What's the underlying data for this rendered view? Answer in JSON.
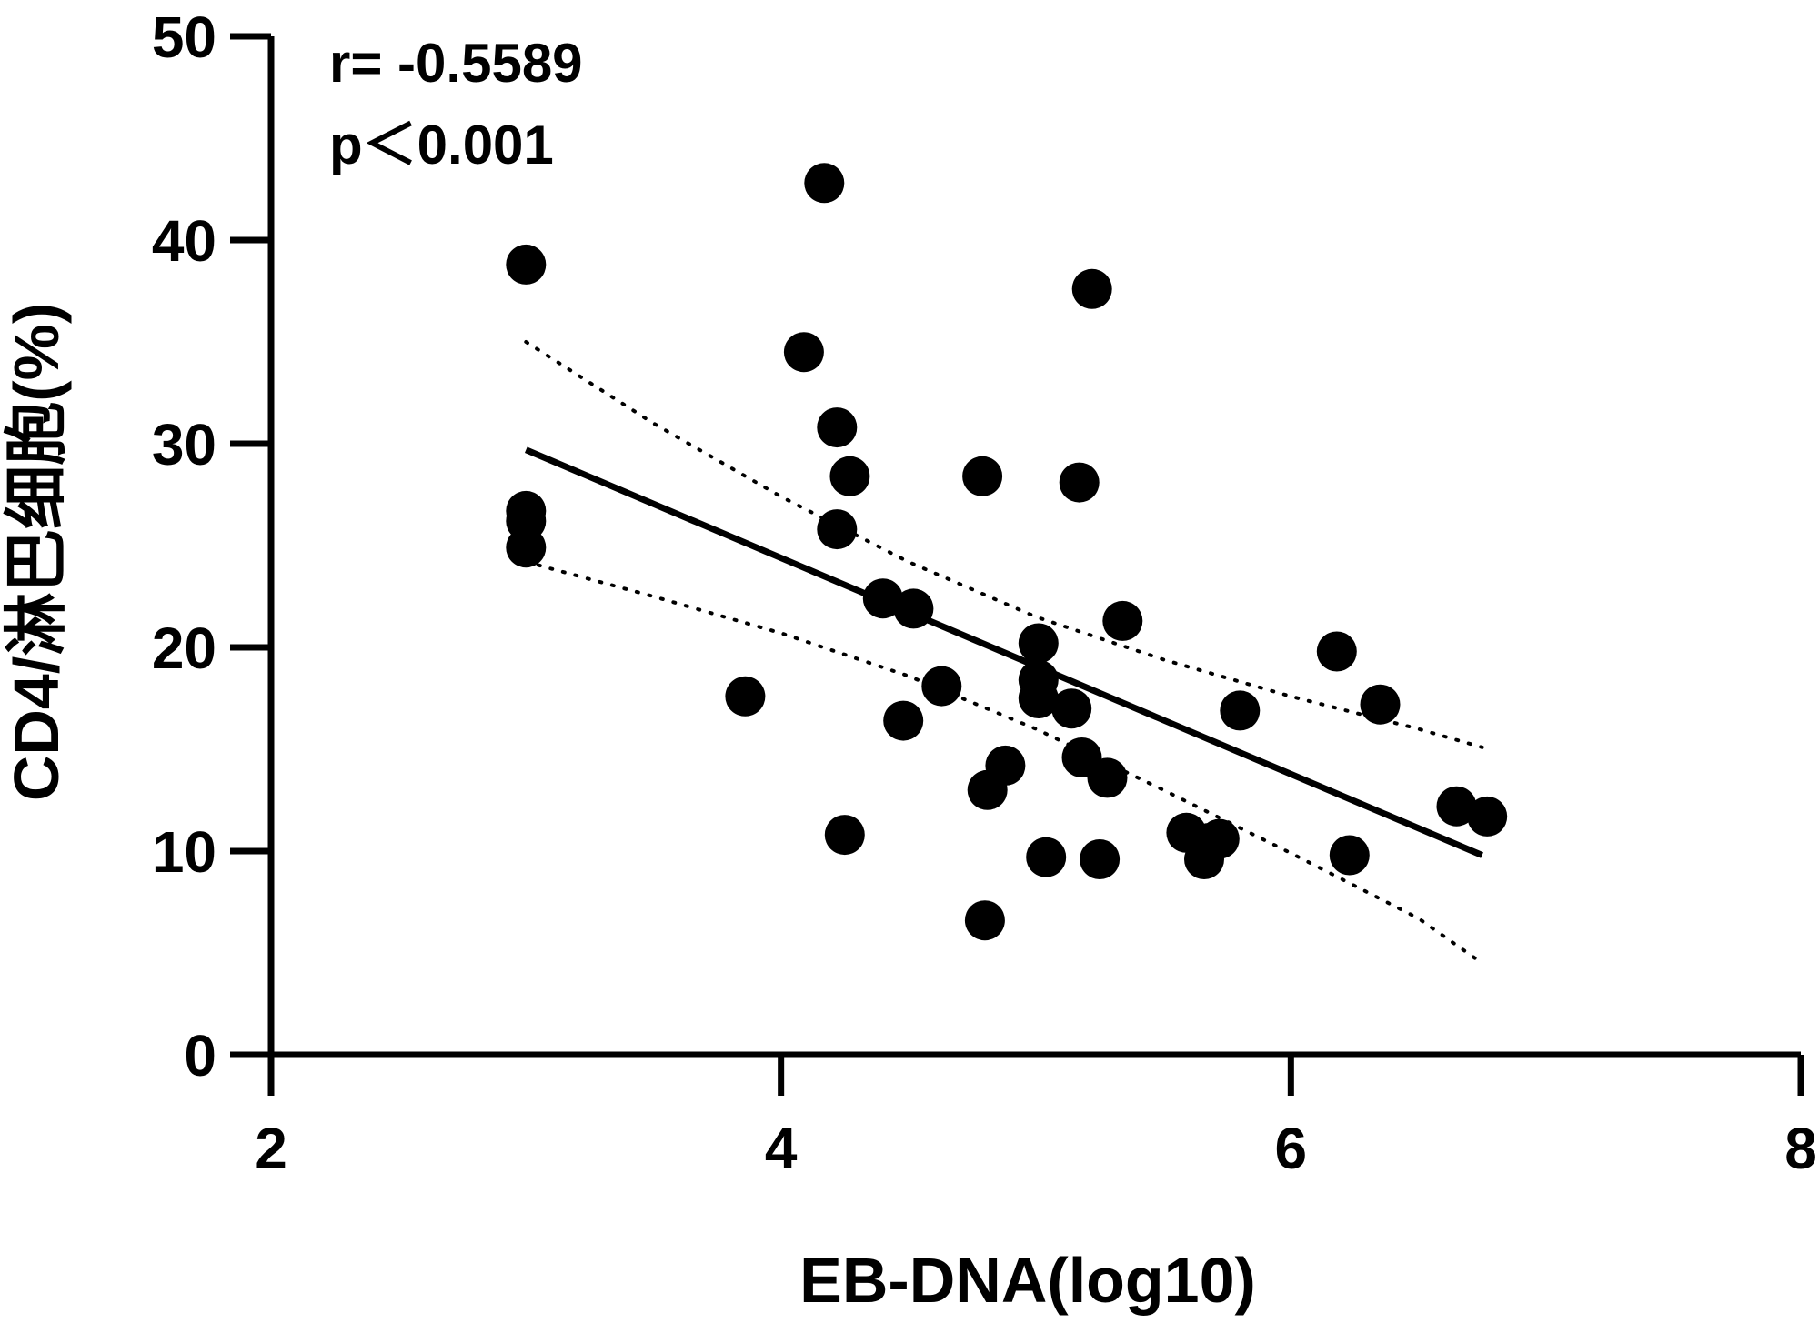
{
  "chart_data": {
    "type": "scatter",
    "xlabel": "EB-DNA(log10)",
    "ylabel": "CD4/淋巴细胞(%)",
    "xlim": [
      2,
      8
    ],
    "ylim": [
      0,
      50
    ],
    "xticks": [
      2,
      4,
      6,
      8
    ],
    "yticks": [
      0,
      10,
      20,
      30,
      40,
      50
    ],
    "grid": false,
    "annotations": {
      "r": "r= -0.5589",
      "p": "p＜0.001"
    },
    "points": [
      {
        "x": 3.0,
        "y": 38.8
      },
      {
        "x": 3.0,
        "y": 26.7
      },
      {
        "x": 3.0,
        "y": 26.2
      },
      {
        "x": 3.0,
        "y": 24.9
      },
      {
        "x": 3.86,
        "y": 17.6
      },
      {
        "x": 4.09,
        "y": 34.5
      },
      {
        "x": 4.17,
        "y": 42.8
      },
      {
        "x": 4.22,
        "y": 30.8
      },
      {
        "x": 4.27,
        "y": 28.4
      },
      {
        "x": 4.22,
        "y": 25.8
      },
      {
        "x": 4.25,
        "y": 10.8
      },
      {
        "x": 4.4,
        "y": 22.4
      },
      {
        "x": 4.52,
        "y": 21.9
      },
      {
        "x": 4.48,
        "y": 16.4
      },
      {
        "x": 4.63,
        "y": 18.1
      },
      {
        "x": 4.79,
        "y": 28.4
      },
      {
        "x": 4.81,
        "y": 13.0
      },
      {
        "x": 4.88,
        "y": 14.2
      },
      {
        "x": 4.8,
        "y": 6.6
      },
      {
        "x": 5.01,
        "y": 20.2
      },
      {
        "x": 5.01,
        "y": 18.4
      },
      {
        "x": 5.01,
        "y": 17.5
      },
      {
        "x": 5.14,
        "y": 17.0
      },
      {
        "x": 5.04,
        "y": 9.7
      },
      {
        "x": 5.17,
        "y": 28.1
      },
      {
        "x": 5.22,
        "y": 37.6
      },
      {
        "x": 5.34,
        "y": 21.3
      },
      {
        "x": 5.18,
        "y": 14.6
      },
      {
        "x": 5.28,
        "y": 13.6
      },
      {
        "x": 5.25,
        "y": 9.6
      },
      {
        "x": 5.59,
        "y": 10.9
      },
      {
        "x": 5.68,
        "y": 10.4
      },
      {
        "x": 5.72,
        "y": 10.6
      },
      {
        "x": 5.66,
        "y": 9.6
      },
      {
        "x": 5.8,
        "y": 16.9
      },
      {
        "x": 6.18,
        "y": 19.8
      },
      {
        "x": 6.35,
        "y": 17.2
      },
      {
        "x": 6.23,
        "y": 9.8
      },
      {
        "x": 6.65,
        "y": 12.2
      },
      {
        "x": 6.77,
        "y": 11.7
      }
    ],
    "regression": {
      "x": [
        3.0,
        6.75
      ],
      "y": [
        29.7,
        9.8
      ]
    },
    "confidence_band": {
      "upper": {
        "x": [
          3.0,
          3.5,
          4.0,
          4.5,
          5.0,
          5.5,
          6.0,
          6.5,
          6.75
        ],
        "y": [
          35.0,
          31.0,
          27.4,
          24.2,
          21.5,
          19.4,
          17.6,
          16.0,
          15.1
        ]
      },
      "lower": {
        "x": [
          3.0,
          3.5,
          4.0,
          4.5,
          5.0,
          5.5,
          6.0,
          6.5,
          6.75
        ],
        "y": [
          24.2,
          22.5,
          20.7,
          18.6,
          16.0,
          13.0,
          9.9,
          6.7,
          4.5
        ]
      }
    }
  }
}
